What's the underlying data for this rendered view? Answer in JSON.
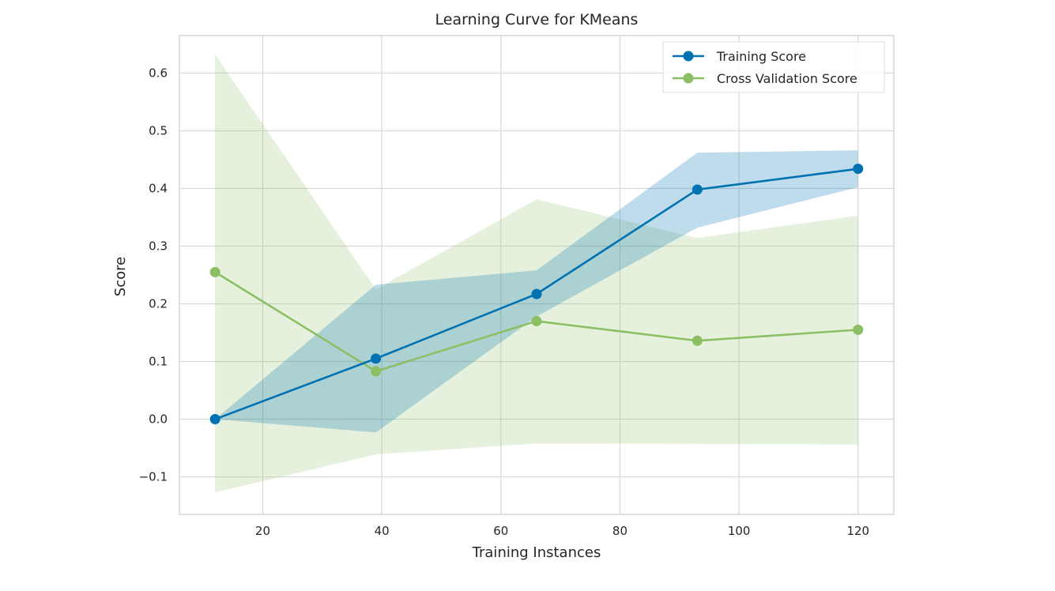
{
  "chart_data": {
    "type": "line",
    "title": "Learning Curve for KMeans",
    "xlabel": "Training Instances",
    "ylabel": "Score",
    "xlim": [
      6,
      126
    ],
    "ylim": [
      -0.165,
      0.665
    ],
    "xticks": [
      20,
      40,
      60,
      80,
      100,
      120
    ],
    "yticks": [
      -0.1,
      0.0,
      0.1,
      0.2,
      0.3,
      0.4,
      0.5,
      0.6
    ],
    "xtick_labels": [
      "20",
      "40",
      "60",
      "80",
      "100",
      "120"
    ],
    "ytick_labels": [
      "−0.1",
      "0.0",
      "0.1",
      "0.2",
      "0.3",
      "0.4",
      "0.5",
      "0.6"
    ],
    "grid": true,
    "legend_position": "top-right",
    "x": [
      12,
      39,
      66,
      93,
      120
    ],
    "series": [
      {
        "name": "Training Score",
        "color": "#0072b2",
        "values": [
          0.0,
          0.105,
          0.217,
          0.398,
          0.434
        ],
        "lower": [
          0.0,
          -0.023,
          0.178,
          0.332,
          0.402
        ],
        "upper": [
          0.0,
          0.233,
          0.258,
          0.462,
          0.466
        ]
      },
      {
        "name": "Cross Validation Score",
        "color": "#8cbf63",
        "values": [
          0.255,
          0.083,
          0.17,
          0.136,
          0.155
        ],
        "lower": [
          -0.127,
          -0.061,
          -0.042,
          -0.043,
          -0.044
        ],
        "upper": [
          0.632,
          0.225,
          0.381,
          0.314,
          0.353
        ]
      }
    ]
  }
}
